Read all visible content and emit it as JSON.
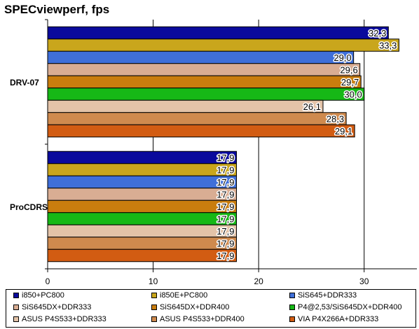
{
  "chart_data": {
    "type": "bar",
    "orientation": "horizontal",
    "title": "SPECviewperf, fps",
    "categories": [
      "DRV-07",
      "ProCDRS"
    ],
    "xlim": [
      0,
      35
    ],
    "xticks": [
      "0",
      "10",
      "20",
      "30"
    ],
    "grid": true,
    "legend_position": "bottom",
    "series": [
      {
        "name": "i850+PC800",
        "values": [
          32.3,
          17.9
        ],
        "labels": [
          "32,3",
          "17,9"
        ],
        "color": "#0a0a9c"
      },
      {
        "name": "i850E+PC800",
        "values": [
          33.3,
          17.9
        ],
        "labels": [
          "33,3",
          "17,9"
        ],
        "color": "#c9a61c"
      },
      {
        "name": "SiS645+DDR333",
        "values": [
          29.0,
          17.9
        ],
        "labels": [
          "29,0",
          "17,9"
        ],
        "color": "#3f6fd9"
      },
      {
        "name": "SiS645DX+DDR333",
        "values": [
          29.6,
          17.9
        ],
        "labels": [
          "29,6",
          "17,9"
        ],
        "color": "#d9ad93"
      },
      {
        "name": "SiS645DX+DDR400",
        "values": [
          29.7,
          17.9
        ],
        "labels": [
          "29,7",
          "17,9"
        ],
        "color": "#c97d0e"
      },
      {
        "name": "P4@2,53/SiS645DX+DDR400",
        "values": [
          30.0,
          17.9
        ],
        "labels": [
          "30,0",
          "17,9"
        ],
        "color": "#16b816"
      },
      {
        "name": "ASUS P4S533+DDR333",
        "values": [
          26.1,
          17.9
        ],
        "labels": [
          "26,1",
          "17,9"
        ],
        "color": "#e3c3a8"
      },
      {
        "name": "ASUS P4S533+DDR400",
        "values": [
          28.3,
          17.9
        ],
        "labels": [
          "28,3",
          "17,9"
        ],
        "color": "#cf8a4e"
      },
      {
        "name": "VIA P4X266A+DDR333",
        "values": [
          29.1,
          17.9
        ],
        "labels": [
          "29,1",
          "17,9"
        ],
        "color": "#d25c12"
      }
    ]
  }
}
